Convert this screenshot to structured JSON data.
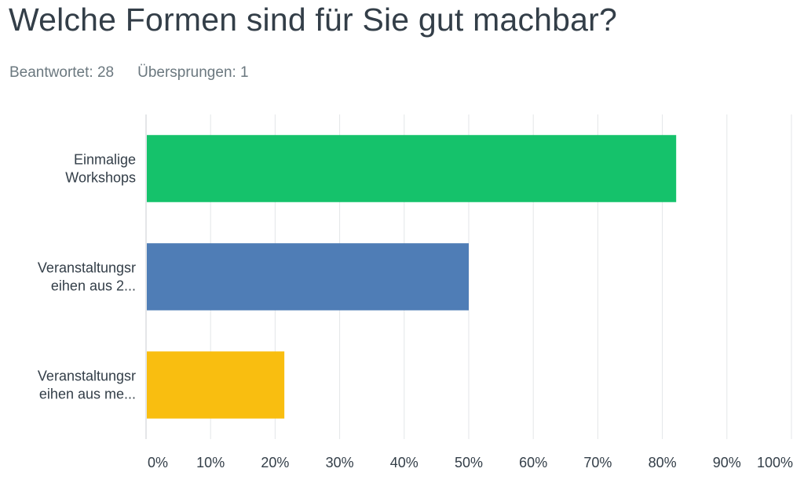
{
  "question": {
    "title": "Welche Formen sind für Sie gut machbar?",
    "answered": "Beantwortet: 28",
    "skipped": "Übersprungen: 1"
  },
  "chart_data": {
    "type": "bar",
    "orientation": "horizontal",
    "categories": [
      [
        "Einmalige",
        "Workshops"
      ],
      [
        "Veranstaltungsr",
        "eihen aus 2..."
      ],
      [
        "Veranstaltungsr",
        "eihen aus me..."
      ]
    ],
    "values": [
      82.14,
      50.0,
      21.43
    ],
    "colors": [
      "#15c26b",
      "#4f7db6",
      "#f9be10"
    ],
    "xlim": [
      0,
      100
    ],
    "x_ticks": [
      "0%",
      "10%",
      "20%",
      "30%",
      "40%",
      "50%",
      "60%",
      "70%",
      "80%",
      "90%",
      "100%"
    ],
    "grid": true
  }
}
